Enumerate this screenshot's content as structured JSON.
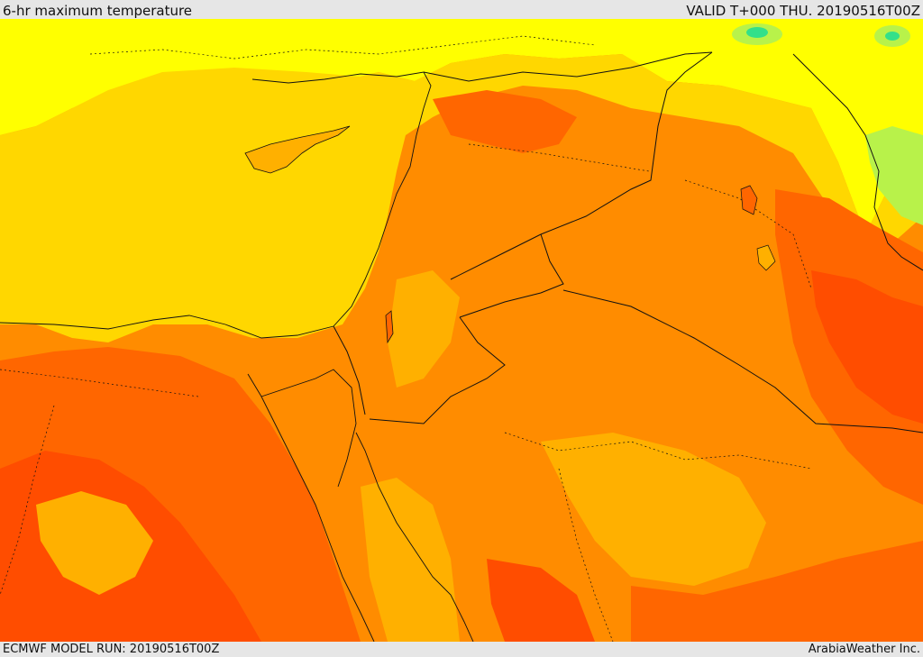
{
  "header": {
    "title": "6-hr maximum temperature",
    "valid": "VALID T+000 THU. 20190516T00Z"
  },
  "footer": {
    "model_run": "ECMWF MODEL RUN: 20190516T00Z",
    "credit": "ArabiaWeather Inc."
  },
  "palette": {
    "cool_green": "#33e08a",
    "pale_green": "#b8f24a",
    "yellow": "#ffff00",
    "gold": "#ffd700",
    "light_orange": "#ffb000",
    "orange": "#ff8c00",
    "dark_orange": "#ff6600",
    "red_orange": "#ff4d00",
    "border_line": "#111111",
    "background": "#e6e6e6"
  }
}
